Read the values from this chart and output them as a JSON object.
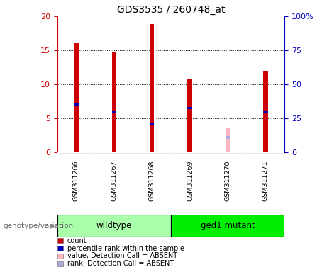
{
  "title": "GDS3535 / 260748_at",
  "samples": [
    "GSM311266",
    "GSM311267",
    "GSM311268",
    "GSM311269",
    "GSM311270",
    "GSM311271"
  ],
  "count_values": [
    16.0,
    14.8,
    18.9,
    10.8,
    0.0,
    12.0
  ],
  "rank_values": [
    35.0,
    29.5,
    21.0,
    32.5,
    0.0,
    30.0
  ],
  "absent_count_values": [
    0.0,
    0.0,
    0.0,
    0.0,
    3.7,
    0.0
  ],
  "absent_rank_values": [
    0.0,
    0.0,
    0.0,
    0.0,
    11.0,
    0.0
  ],
  "ylim_left": [
    0,
    20
  ],
  "ylim_right": [
    0,
    100
  ],
  "yticks_left": [
    0,
    5,
    10,
    15,
    20
  ],
  "yticks_right": [
    0,
    25,
    50,
    75,
    100
  ],
  "ytick_labels_right": [
    "0",
    "25",
    "50",
    "75",
    "100%"
  ],
  "bar_width": 0.12,
  "count_color": "#CC0000",
  "rank_color": "#0000BB",
  "absent_count_color": "#FFB6C1",
  "absent_rank_color": "#AAAADD",
  "bg_color": "#FFFFFF",
  "label_area_color": "#C8C8C8",
  "wildtype_color": "#AAFFAA",
  "mutant_color": "#00EE00",
  "genotype_label": "genotype/variation",
  "legend_items": [
    {
      "color": "#CC0000",
      "label": "count"
    },
    {
      "color": "#0000BB",
      "label": "percentile rank within the sample"
    },
    {
      "color": "#FFB6C1",
      "label": "value, Detection Call = ABSENT"
    },
    {
      "color": "#AAAADD",
      "label": "rank, Detection Call = ABSENT"
    }
  ]
}
